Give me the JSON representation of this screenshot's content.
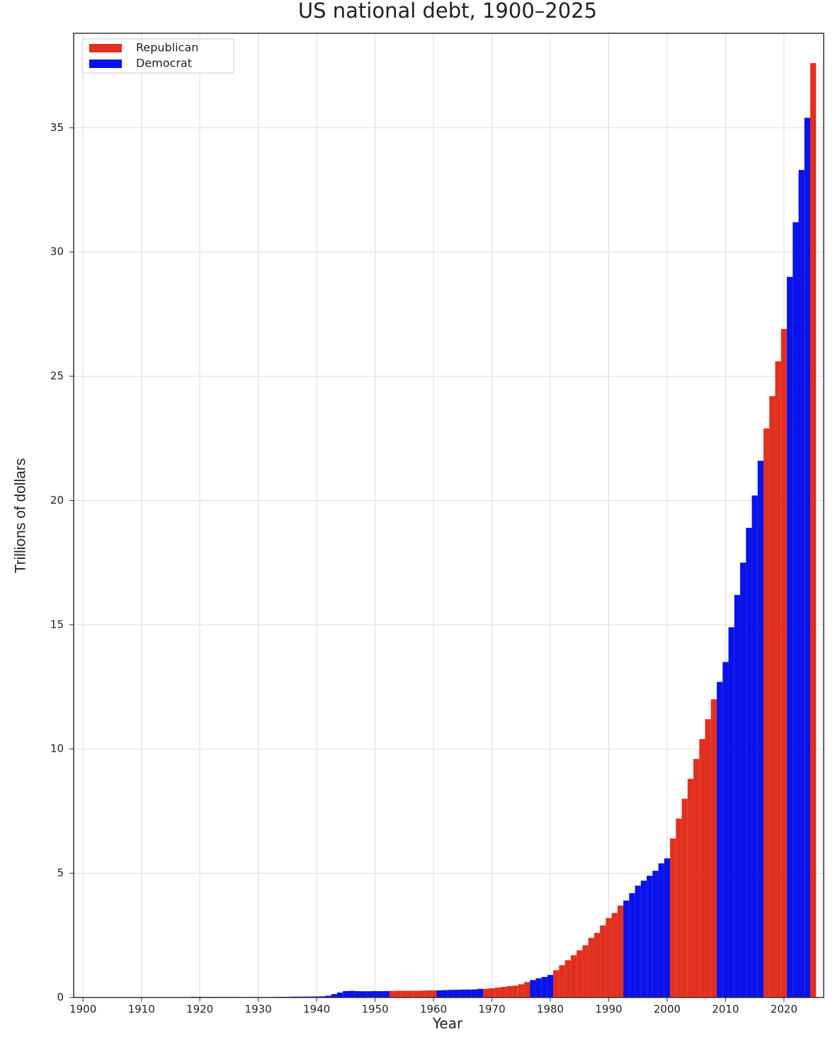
{
  "chart_data": {
    "type": "bar",
    "title": "US national debt, 1900–2025",
    "x_label": "Year",
    "y_label": "Trillions of dollars",
    "x": [
      1900,
      1901,
      1902,
      1903,
      1904,
      1905,
      1906,
      1907,
      1908,
      1909,
      1910,
      1911,
      1912,
      1913,
      1914,
      1915,
      1916,
      1917,
      1918,
      1919,
      1920,
      1921,
      1922,
      1923,
      1924,
      1925,
      1926,
      1927,
      1928,
      1929,
      1930,
      1931,
      1932,
      1933,
      1934,
      1935,
      1936,
      1937,
      1938,
      1939,
      1940,
      1941,
      1942,
      1943,
      1944,
      1945,
      1946,
      1947,
      1948,
      1949,
      1950,
      1951,
      1952,
      1953,
      1954,
      1955,
      1956,
      1957,
      1958,
      1959,
      1960,
      1961,
      1962,
      1963,
      1964,
      1965,
      1966,
      1967,
      1968,
      1969,
      1970,
      1971,
      1972,
      1973,
      1974,
      1975,
      1976,
      1977,
      1978,
      1979,
      1980,
      1981,
      1982,
      1983,
      1984,
      1985,
      1986,
      1987,
      1988,
      1989,
      1990,
      1991,
      1992,
      1993,
      1994,
      1995,
      1996,
      1997,
      1998,
      1999,
      2000,
      2001,
      2002,
      2003,
      2004,
      2005,
      2006,
      2007,
      2008,
      2009,
      2010,
      2011,
      2012,
      2013,
      2014,
      2015,
      2016,
      2017,
      2018,
      2019,
      2020,
      2021,
      2022,
      2023,
      2024,
      2025
    ],
    "series": [
      {
        "name": "Republican",
        "color": "#e2301f",
        "values": [
          0.001,
          0.001,
          0.001,
          0.001,
          0.001,
          0.001,
          0.001,
          0.001,
          0.001,
          0.001,
          0.001,
          0.001,
          0.001,
          null,
          null,
          null,
          null,
          null,
          null,
          null,
          null,
          0.024,
          0.023,
          0.022,
          0.021,
          0.02,
          0.019,
          0.018,
          0.018,
          0.017,
          0.016,
          0.017,
          0.019,
          null,
          null,
          null,
          null,
          null,
          null,
          null,
          null,
          null,
          null,
          null,
          null,
          null,
          null,
          null,
          null,
          null,
          null,
          null,
          null,
          0.266,
          0.271,
          0.274,
          0.273,
          0.271,
          0.276,
          0.285,
          0.286,
          null,
          null,
          null,
          null,
          null,
          null,
          null,
          null,
          0.354,
          0.371,
          0.398,
          0.427,
          0.458,
          0.475,
          0.533,
          0.62,
          null,
          null,
          null,
          null,
          1.1,
          1.3,
          1.5,
          1.7,
          1.9,
          2.1,
          2.4,
          2.6,
          2.9,
          3.2,
          3.4,
          3.7,
          null,
          null,
          null,
          null,
          null,
          null,
          null,
          null,
          6.4,
          7.2,
          8.0,
          8.8,
          9.6,
          10.4,
          11.2,
          12.0,
          null,
          null,
          null,
          null,
          null,
          null,
          null,
          null,
          22.9,
          24.2,
          25.6,
          26.9,
          null,
          null,
          null,
          null,
          37.6
        ]
      },
      {
        "name": "Democrat",
        "color": "#0a12ea",
        "values": [
          null,
          null,
          null,
          null,
          null,
          null,
          null,
          null,
          null,
          null,
          null,
          null,
          null,
          0.001,
          0.001,
          0.001,
          0.001,
          0.003,
          0.012,
          0.025,
          0.024,
          null,
          null,
          null,
          null,
          null,
          null,
          null,
          null,
          null,
          null,
          null,
          null,
          0.023,
          0.027,
          0.029,
          0.034,
          0.036,
          0.037,
          0.04,
          0.043,
          0.049,
          0.072,
          0.137,
          0.201,
          0.259,
          0.269,
          0.258,
          0.252,
          0.253,
          0.257,
          0.255,
          0.259,
          null,
          null,
          null,
          null,
          null,
          null,
          null,
          null,
          0.289,
          0.298,
          0.306,
          0.312,
          0.317,
          0.32,
          0.326,
          0.348,
          null,
          null,
          null,
          null,
          null,
          null,
          null,
          null,
          0.699,
          0.772,
          0.827,
          0.908,
          null,
          null,
          null,
          null,
          null,
          null,
          null,
          null,
          null,
          null,
          null,
          null,
          3.9,
          4.2,
          4.5,
          4.7,
          4.9,
          5.1,
          5.4,
          5.6,
          null,
          null,
          null,
          null,
          null,
          null,
          null,
          null,
          12.7,
          13.5,
          14.9,
          16.2,
          17.5,
          18.9,
          20.2,
          21.6,
          null,
          null,
          null,
          null,
          29.0,
          31.2,
          33.3,
          35.4,
          null
        ]
      }
    ],
    "xlim": [
      1898.4,
      2026.8
    ],
    "xticks": [
      1900,
      1910,
      1920,
      1930,
      1940,
      1950,
      1960,
      1970,
      1980,
      1990,
      2000,
      2010,
      2020
    ],
    "ylim": [
      0,
      38.8
    ],
    "yticks": [
      0,
      5,
      10,
      15,
      20,
      25,
      30,
      35
    ],
    "grid": true,
    "legend": "upper left"
  }
}
